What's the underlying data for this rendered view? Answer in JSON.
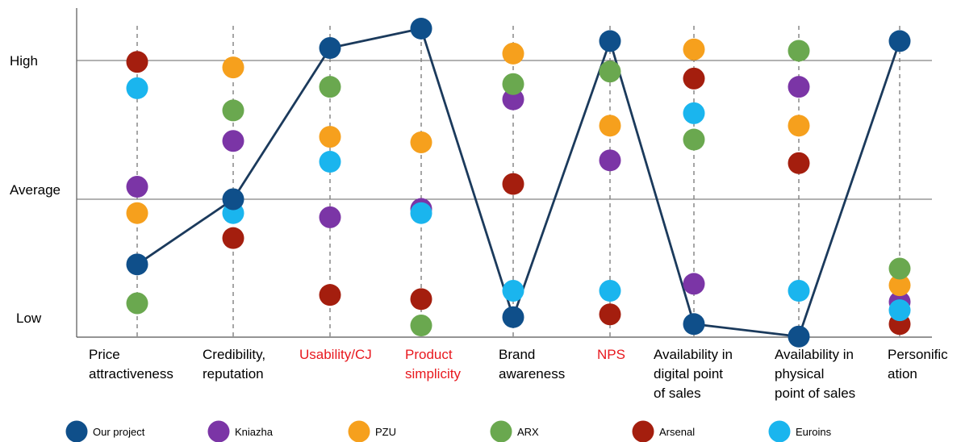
{
  "chart_data": {
    "type": "scatter",
    "y_levels": [
      "High",
      "Average",
      "Low"
    ],
    "y_scale": "qualitative (1 = Low, 2 = Average, 3 = High)",
    "ylim": [
      0.9,
      3.4
    ],
    "grid": "horizontal lines at High and Average; dashed vertical guide per category",
    "legend_position": "bottom",
    "categories": [
      {
        "lines": [
          "Price",
          "attractiveness"
        ],
        "highlight": false
      },
      {
        "lines": [
          "Credibility,",
          "reputation"
        ],
        "highlight": false
      },
      {
        "lines": [
          "Usability/CJ"
        ],
        "highlight": true
      },
      {
        "lines": [
          "Product",
          "simplicity"
        ],
        "highlight": true
      },
      {
        "lines": [
          "Brand",
          "awareness"
        ],
        "highlight": false
      },
      {
        "lines": [
          "NPS"
        ],
        "highlight": true
      },
      {
        "lines": [
          "Availability in",
          "digital point",
          "of sales"
        ],
        "highlight": false
      },
      {
        "lines": [
          "Availability in",
          "physical",
          "point of sales"
        ],
        "highlight": false
      },
      {
        "lines": [
          "Personific",
          "ation"
        ],
        "highlight": false
      }
    ],
    "highlight_color": "#e8181e",
    "series": [
      {
        "name": "Our project",
        "color": "#0f4f8a",
        "connected": true,
        "values": [
          1.53,
          2.0,
          3.09,
          3.23,
          1.15,
          3.14,
          1.1,
          1.01,
          3.14
        ]
      },
      {
        "name": "Kniazha",
        "color": "#7b35a6",
        "values": [
          2.09,
          2.42,
          1.87,
          1.93,
          2.72,
          2.28,
          1.39,
          2.81,
          1.26
        ]
      },
      {
        "name": "PZU",
        "color": "#f6a01d",
        "values": [
          1.9,
          2.95,
          2.45,
          2.41,
          3.05,
          2.53,
          3.08,
          2.53,
          1.38
        ]
      },
      {
        "name": "ARX",
        "color": "#6aa84f",
        "values": [
          1.25,
          2.64,
          2.81,
          1.09,
          2.83,
          2.92,
          2.43,
          3.07,
          1.5
        ]
      },
      {
        "name": "Arsenal",
        "color": "#a41e0e",
        "values": [
          2.99,
          1.72,
          1.31,
          1.28,
          2.11,
          1.17,
          2.87,
          2.26,
          1.1
        ]
      },
      {
        "name": "Euroins",
        "color": "#1ab5ee",
        "values": [
          2.8,
          1.9,
          2.27,
          1.9,
          1.34,
          1.34,
          2.62,
          1.34,
          1.2
        ]
      }
    ]
  }
}
